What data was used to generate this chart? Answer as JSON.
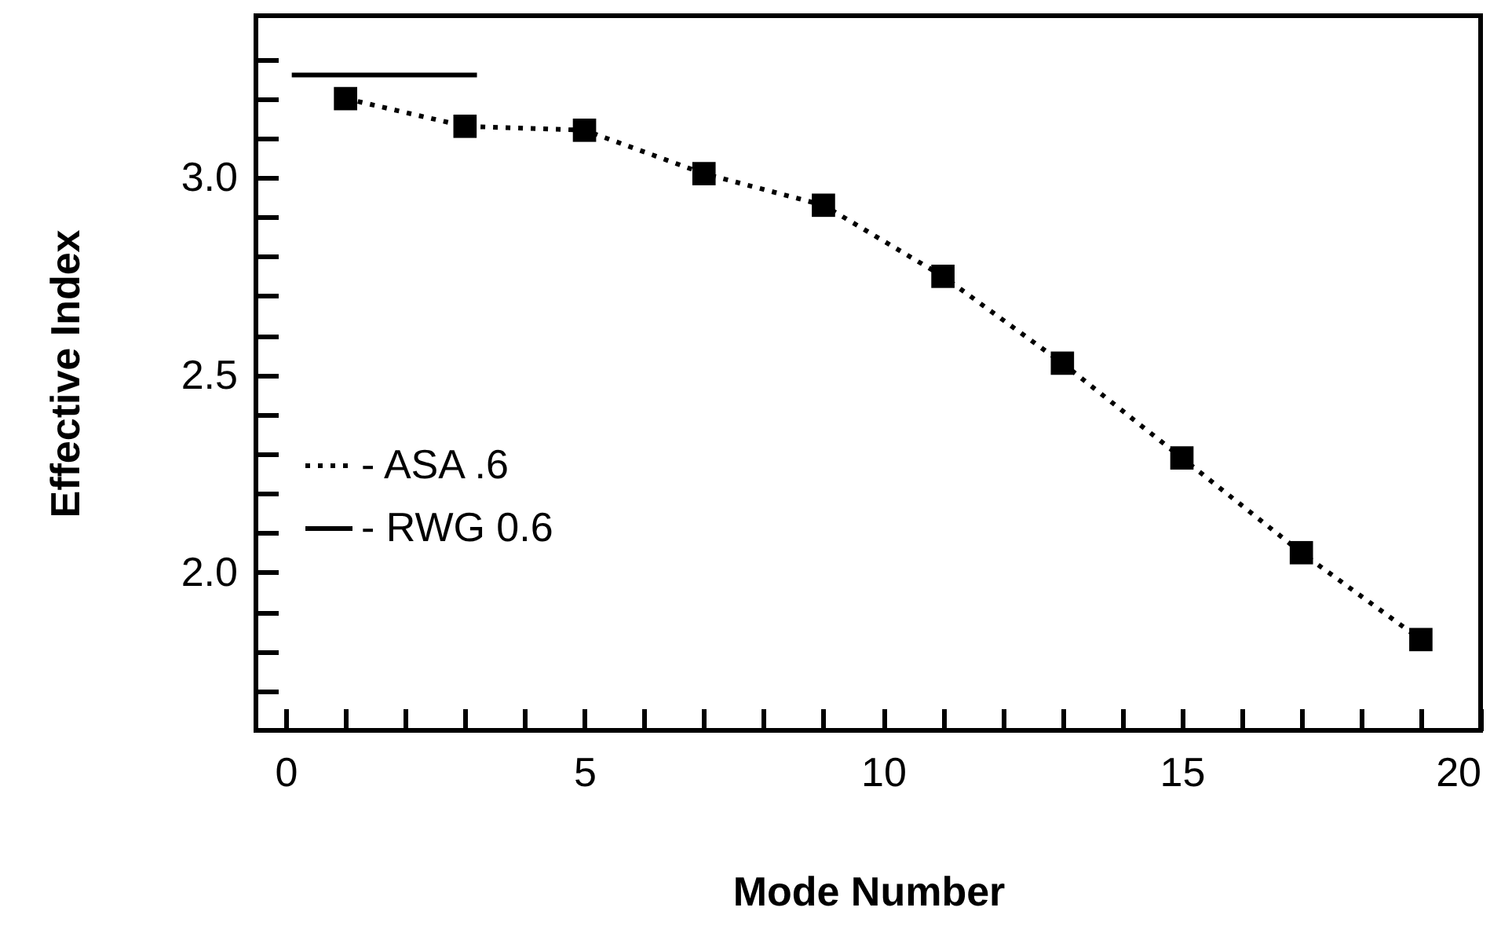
{
  "chart_data": {
    "type": "line",
    "xlabel": "Mode Number",
    "ylabel": "Effective Index",
    "xlim": [
      -0.5,
      20
    ],
    "ylim": [
      1.6,
      3.41
    ],
    "xticks": [
      0,
      {
        "value": 1,
        "label": null
      },
      {
        "value": 2,
        "label": null
      },
      {
        "value": 3,
        "label": null
      },
      {
        "value": 4,
        "label": null
      },
      5,
      {
        "value": 6,
        "label": null
      },
      {
        "value": 7,
        "label": null
      },
      {
        "value": 8,
        "label": null
      },
      {
        "value": 9,
        "label": null
      },
      10,
      {
        "value": 11,
        "label": null
      },
      {
        "value": 12,
        "label": null
      },
      {
        "value": 13,
        "label": null
      },
      {
        "value": 14,
        "label": null
      },
      15,
      {
        "value": 16,
        "label": null
      },
      {
        "value": 17,
        "label": null
      },
      {
        "value": 18,
        "label": null
      },
      {
        "value": 19,
        "label": null
      },
      20
    ],
    "yticks": [
      {
        "value": 1.7,
        "label": null
      },
      {
        "value": 1.8,
        "label": null
      },
      {
        "value": 1.9,
        "label": null
      },
      {
        "value": 2.0,
        "label": "2.0"
      },
      {
        "value": 2.1,
        "label": null
      },
      {
        "value": 2.2,
        "label": null
      },
      {
        "value": 2.3,
        "label": null
      },
      {
        "value": 2.4,
        "label": null
      },
      2.5,
      {
        "value": 2.6,
        "label": null
      },
      {
        "value": 2.7,
        "label": null
      },
      {
        "value": 2.8,
        "label": null
      },
      {
        "value": 2.9,
        "label": null
      },
      {
        "value": 3.0,
        "label": "3.0"
      },
      {
        "value": 3.1,
        "label": null
      },
      {
        "value": 3.2,
        "label": null
      },
      {
        "value": 3.3,
        "label": null
      }
    ],
    "grid": false,
    "legend": "left",
    "series": [
      {
        "name": "- ASA .6",
        "color": "#000000",
        "marker": "square",
        "line_style": "dotted",
        "x": [
          1,
          3,
          5,
          7,
          9,
          11,
          13,
          15,
          17,
          19
        ],
        "values": [
          3.2,
          3.13,
          3.12,
          3.01,
          2.93,
          2.75,
          2.53,
          2.29,
          2.05,
          1.83
        ]
      },
      {
        "name": "- RWG 0.6",
        "color": "#000000",
        "marker": "none",
        "line_style": "solid",
        "x": [
          0.1,
          3.2
        ],
        "values": [
          3.26,
          3.26
        ]
      }
    ]
  }
}
